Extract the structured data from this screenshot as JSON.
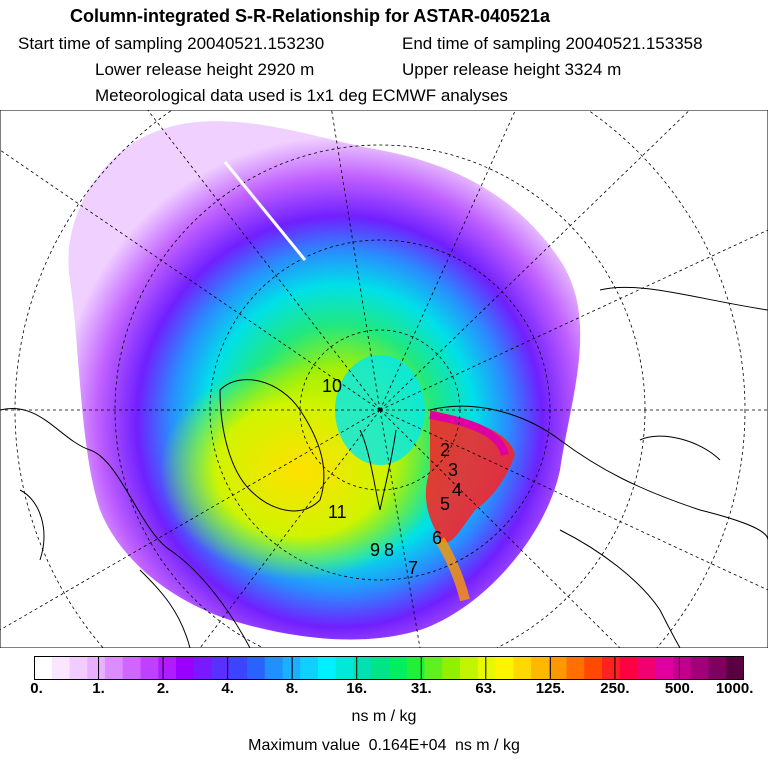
{
  "header": {
    "title": "Column-integrated S-R-Relationship for ASTAR-040521a",
    "start_time": "Start time of sampling 20040521.153230",
    "end_time": "End time of sampling 20040521.153358",
    "lower_release": "Lower release height 2920 m",
    "upper_release": "Upper release height 3324 m",
    "met_data": "Meteorological data used is 1x1 deg ECMWF analyses"
  },
  "map": {
    "track_labels": [
      "2",
      "3",
      "4",
      "5",
      "6",
      "7",
      "8",
      "9",
      "10",
      "11"
    ]
  },
  "colorbar": {
    "tick_labels": [
      "0.",
      "1.",
      "2.",
      "4.",
      "8.",
      "16.",
      "31.",
      "63.",
      "125.",
      "250.",
      "500.",
      "1000."
    ],
    "colors": [
      "#ffffff",
      "#fbe6ff",
      "#f3ccff",
      "#e9b0ff",
      "#dc8cff",
      "#cf66ff",
      "#c040ff",
      "#b01cff",
      "#9a00ff",
      "#7a18ff",
      "#5a30ff",
      "#3c44ff",
      "#2a62ff",
      "#2090ff",
      "#18b0ff",
      "#10d0ff",
      "#00f0ff",
      "#00e8d8",
      "#00e0b0",
      "#00e488",
      "#00ee60",
      "#20f038",
      "#60f020",
      "#90f000",
      "#c0f400",
      "#e8f800",
      "#fff400",
      "#ffd800",
      "#ffb800",
      "#ff9800",
      "#ff7000",
      "#ff4800",
      "#ff2020",
      "#ff0040",
      "#f00070",
      "#e000a0",
      "#c0008c",
      "#a00078",
      "#800060",
      "#5a0040"
    ]
  },
  "units": "ns m / kg",
  "max_value": {
    "label": "Maximum value",
    "value": "0.164E+04",
    "unit": "ns m / kg"
  }
}
